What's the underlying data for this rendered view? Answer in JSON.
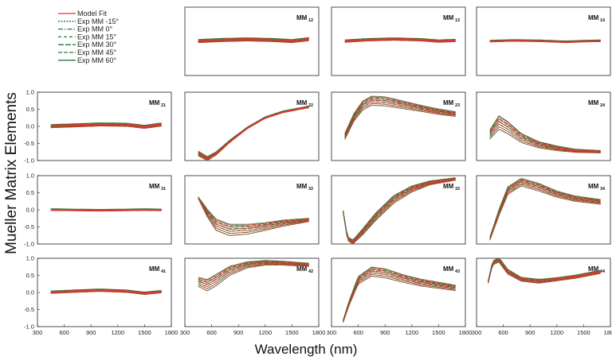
{
  "figure": {
    "ylabel": "Mueller Matrix Elements",
    "xlabel": "Wavelength (nm)",
    "xticks": [
      "300",
      "600",
      "900",
      "1200",
      "1500",
      "1800"
    ],
    "yticks": [
      "1.0",
      "0.5",
      "0.0",
      "-0.5",
      "-1.0"
    ]
  },
  "legend": {
    "items": [
      {
        "label": "Model Fit",
        "color": "#e8342b",
        "dash": "solid"
      },
      {
        "label": "Exp MM -15°",
        "color": "#1f7a3a",
        "dash": "2,1.5"
      },
      {
        "label": "Exp MM   0°",
        "color": "#1f7a3a",
        "dash": "6,2,1.5,2"
      },
      {
        "label": "Exp MM 15°",
        "color": "#1f7a3a",
        "dash": "4,3"
      },
      {
        "label": "Exp MM 30°",
        "color": "#1f7a3a",
        "dash": "7,2"
      },
      {
        "label": "Exp MM 45°",
        "color": "#1f7a3a",
        "dash": "5,2"
      },
      {
        "label": "Exp MM 60°",
        "color": "#1f7a3a",
        "dash": "solid"
      }
    ]
  },
  "chart_data": {
    "type": "line",
    "xlabel": "Wavelength (nm)",
    "ylabel": "Mueller Matrix Elements",
    "xlim": [
      300,
      1800
    ],
    "ylim": [
      -1,
      1
    ],
    "panels": [
      {
        "title": "MM",
        "sub": "12",
        "row": 0,
        "col": 1,
        "x": [
          450,
          700,
          1000,
          1300,
          1500,
          1700
        ],
        "base": [
          0.0,
          0.03,
          0.05,
          0.03,
          0.0,
          0.06
        ],
        "spread": [
          0.04,
          0.04,
          0.04,
          0.04,
          0.04,
          0.04
        ]
      },
      {
        "title": "MM",
        "sub": "13",
        "row": 0,
        "col": 2,
        "x": [
          450,
          700,
          1000,
          1300,
          1500,
          1700
        ],
        "base": [
          0.0,
          0.04,
          0.06,
          0.04,
          0.0,
          0.02
        ],
        "spread": [
          0.03,
          0.03,
          0.03,
          0.03,
          0.03,
          0.03
        ]
      },
      {
        "title": "MM",
        "sub": "14",
        "row": 0,
        "col": 3,
        "x": [
          450,
          700,
          1000,
          1300,
          1500,
          1700
        ],
        "base": [
          0.0,
          0.02,
          0.01,
          -0.02,
          0.0,
          0.01
        ],
        "spread": [
          0.02,
          0.02,
          0.02,
          0.02,
          0.02,
          0.02
        ]
      },
      {
        "title": "MM",
        "sub": "21",
        "row": 1,
        "col": 0,
        "x": [
          450,
          700,
          1000,
          1300,
          1500,
          1700
        ],
        "base": [
          0.0,
          0.02,
          0.05,
          0.04,
          -0.02,
          0.05
        ],
        "spread": [
          0.04,
          0.04,
          0.04,
          0.04,
          0.04,
          0.04
        ]
      },
      {
        "title": "MM",
        "sub": "22",
        "row": 1,
        "col": 1,
        "x": [
          450,
          550,
          650,
          800,
          1000,
          1200,
          1400,
          1700
        ],
        "base": [
          -0.8,
          -0.95,
          -0.8,
          -0.45,
          -0.05,
          0.25,
          0.42,
          0.57
        ],
        "spread": [
          0.06,
          0.05,
          0.04,
          0.03,
          0.02,
          0.02,
          0.02,
          0.02
        ]
      },
      {
        "title": "MM",
        "sub": "23",
        "row": 1,
        "col": 2,
        "x": [
          450,
          550,
          650,
          750,
          900,
          1100,
          1300,
          1500,
          1700
        ],
        "base": [
          -0.3,
          0.25,
          0.6,
          0.74,
          0.72,
          0.62,
          0.52,
          0.42,
          0.35
        ],
        "spread": [
          0.08,
          0.1,
          0.12,
          0.12,
          0.12,
          0.1,
          0.08,
          0.07,
          0.06
        ]
      },
      {
        "title": "MM",
        "sub": "24",
        "row": 1,
        "col": 3,
        "x": [
          450,
          550,
          650,
          800,
          1000,
          1200,
          1400,
          1700
        ],
        "base": [
          -0.25,
          0.1,
          -0.05,
          -0.35,
          -0.55,
          -0.65,
          -0.72,
          -0.75
        ],
        "spread": [
          0.12,
          0.18,
          0.16,
          0.12,
          0.08,
          0.06,
          0.04,
          0.03
        ]
      },
      {
        "title": "MM",
        "sub": "31",
        "row": 2,
        "col": 0,
        "x": [
          450,
          700,
          1000,
          1300,
          1500,
          1700
        ],
        "base": [
          0.0,
          -0.01,
          -0.02,
          -0.01,
          0.0,
          -0.01
        ],
        "spread": [
          0.02,
          0.02,
          0.02,
          0.02,
          0.02,
          0.02
        ]
      },
      {
        "title": "MM",
        "sub": "32",
        "row": 2,
        "col": 1,
        "x": [
          450,
          550,
          650,
          800,
          1000,
          1200,
          1400,
          1700
        ],
        "base": [
          0.35,
          -0.1,
          -0.45,
          -0.6,
          -0.58,
          -0.5,
          -0.4,
          -0.3
        ],
        "spread": [
          0.02,
          0.1,
          0.15,
          0.15,
          0.13,
          0.1,
          0.08,
          0.04
        ]
      },
      {
        "title": "MM",
        "sub": "33",
        "row": 2,
        "col": 2,
        "x": [
          430,
          480,
          540,
          650,
          800,
          1000,
          1200,
          1400,
          1700
        ],
        "base": [
          -0.05,
          -0.85,
          -0.95,
          -0.65,
          -0.2,
          0.3,
          0.6,
          0.78,
          0.9
        ],
        "spread": [
          0.02,
          0.05,
          0.05,
          0.08,
          0.1,
          0.1,
          0.08,
          0.05,
          0.03
        ]
      },
      {
        "title": "MM",
        "sub": "34",
        "row": 2,
        "col": 3,
        "x": [
          450,
          550,
          650,
          800,
          1000,
          1200,
          1400,
          1700
        ],
        "base": [
          -0.85,
          -0.1,
          0.55,
          0.8,
          0.65,
          0.45,
          0.32,
          0.22
        ],
        "spread": [
          0.04,
          0.08,
          0.1,
          0.1,
          0.1,
          0.08,
          0.07,
          0.06
        ]
      },
      {
        "title": "MM",
        "sub": "41",
        "row": 3,
        "col": 0,
        "x": [
          450,
          700,
          1000,
          1300,
          1500,
          1700
        ],
        "base": [
          0.0,
          0.03,
          0.06,
          0.03,
          -0.03,
          0.02
        ],
        "spread": [
          0.03,
          0.03,
          0.03,
          0.03,
          0.03,
          0.03
        ]
      },
      {
        "title": "MM",
        "sub": "42",
        "row": 3,
        "col": 1,
        "x": [
          450,
          550,
          650,
          800,
          1000,
          1200,
          1400,
          1700
        ],
        "base": [
          0.3,
          0.2,
          0.35,
          0.62,
          0.8,
          0.86,
          0.85,
          0.8
        ],
        "spread": [
          0.12,
          0.15,
          0.15,
          0.12,
          0.08,
          0.06,
          0.05,
          0.04
        ]
      },
      {
        "title": "MM",
        "sub": "43",
        "row": 3,
        "col": 2,
        "x": [
          430,
          500,
          600,
          750,
          900,
          1100,
          1300,
          1500,
          1700
        ],
        "base": [
          -0.85,
          -0.3,
          0.35,
          0.6,
          0.55,
          0.4,
          0.28,
          0.2,
          0.12
        ],
        "spread": [
          0.03,
          0.06,
          0.1,
          0.12,
          0.12,
          0.1,
          0.09,
          0.08,
          0.07
        ]
      },
      {
        "title": "MM",
        "sub": "44",
        "row": 3,
        "col": 3,
        "x": [
          430,
          480,
          550,
          650,
          800,
          1000,
          1200,
          1400,
          1700
        ],
        "base": [
          0.3,
          0.85,
          0.95,
          0.6,
          0.38,
          0.32,
          0.38,
          0.45,
          0.6
        ],
        "spread": [
          0.03,
          0.05,
          0.06,
          0.06,
          0.05,
          0.05,
          0.04,
          0.04,
          0.04
        ]
      }
    ]
  }
}
